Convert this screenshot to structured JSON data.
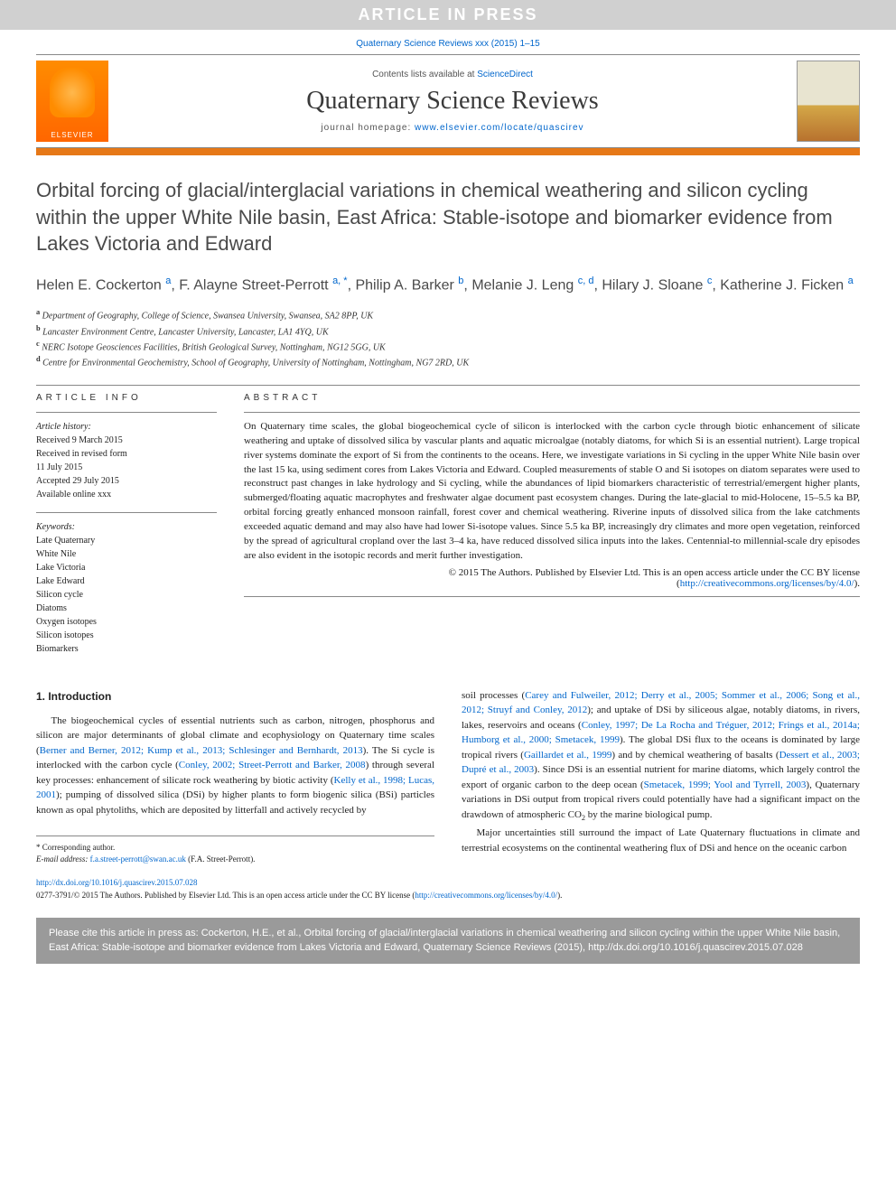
{
  "banner": "ARTICLE IN PRESS",
  "citation_header": "Quaternary Science Reviews xxx (2015) 1–15",
  "masthead": {
    "contents_prefix": "Contents lists available at ",
    "contents_link": "ScienceDirect",
    "journal": "Quaternary Science Reviews",
    "homepage_prefix": "journal homepage: ",
    "homepage_url": "www.elsevier.com/locate/quascirev",
    "publisher": "ELSEVIER",
    "cover_label": "QUATERNARY"
  },
  "title": "Orbital forcing of glacial/interglacial variations in chemical weathering and silicon cycling within the upper White Nile basin, East Africa: Stable-isotope and biomarker evidence from Lakes Victoria and Edward",
  "authors_html": "Helen E. Cockerton <sup>a</sup>, F. Alayne Street-Perrott <sup>a, *</sup>, Philip A. Barker <sup>b</sup>, Melanie J. Leng <sup>c, d</sup>, Hilary J. Sloane <sup>c</sup>, Katherine J. Ficken <sup>a</sup>",
  "affiliations": [
    {
      "sup": "a",
      "text": "Department of Geography, College of Science, Swansea University, Swansea, SA2 8PP, UK"
    },
    {
      "sup": "b",
      "text": "Lancaster Environment Centre, Lancaster University, Lancaster, LA1 4YQ, UK"
    },
    {
      "sup": "c",
      "text": "NERC Isotope Geosciences Facilities, British Geological Survey, Nottingham, NG12 5GG, UK"
    },
    {
      "sup": "d",
      "text": "Centre for Environmental Geochemistry, School of Geography, University of Nottingham, Nottingham, NG7 2RD, UK"
    }
  ],
  "article_info": {
    "header": "ARTICLE INFO",
    "history_title": "Article history:",
    "history": [
      "Received 9 March 2015",
      "Received in revised form",
      "11 July 2015",
      "Accepted 29 July 2015",
      "Available online xxx"
    ],
    "keywords_title": "Keywords:",
    "keywords": [
      "Late Quaternary",
      "White Nile",
      "Lake Victoria",
      "Lake Edward",
      "Silicon cycle",
      "Diatoms",
      "Oxygen isotopes",
      "Silicon isotopes",
      "Biomarkers"
    ]
  },
  "abstract": {
    "header": "ABSTRACT",
    "text": "On Quaternary time scales, the global biogeochemical cycle of silicon is interlocked with the carbon cycle through biotic enhancement of silicate weathering and uptake of dissolved silica by vascular plants and aquatic microalgae (notably diatoms, for which Si is an essential nutrient). Large tropical river systems dominate the export of Si from the continents to the oceans. Here, we investigate variations in Si cycling in the upper White Nile basin over the last 15 ka, using sediment cores from Lakes Victoria and Edward. Coupled measurements of stable O and Si isotopes on diatom separates were used to reconstruct past changes in lake hydrology and Si cycling, while the abundances of lipid biomarkers characteristic of terrestrial/emergent higher plants, submerged/floating aquatic macrophytes and freshwater algae document past ecosystem changes. During the late-glacial to mid-Holocene, 15–5.5 ka BP, orbital forcing greatly enhanced monsoon rainfall, forest cover and chemical weathering. Riverine inputs of dissolved silica from the lake catchments exceeded aquatic demand and may also have had lower Si-isotope values. Since 5.5 ka BP, increasingly dry climates and more open vegetation, reinforced by the spread of agricultural cropland over the last 3–4 ka, have reduced dissolved silica inputs into the lakes. Centennial-to millennial-scale dry episodes are also evident in the isotopic records and merit further investigation.",
    "copyright": "© 2015 The Authors. Published by Elsevier Ltd. This is an open access article under the CC BY license",
    "license_url": "http://creativecommons.org/licenses/by/4.0/"
  },
  "body": {
    "section_title": "1. Introduction",
    "col1_p1_pre": "The biogeochemical cycles of essential nutrients such as carbon, nitrogen, phosphorus and silicon are major determinants of global climate and ecophysiology on Quaternary time scales (",
    "col1_ref1": "Berner and Berner, 2012; Kump et al., 2013; Schlesinger and Bernhardt, 2013",
    "col1_p1_mid1": "). The Si cycle is interlocked with the carbon cycle (",
    "col1_ref2": "Conley, 2002; Street-Perrott and Barker, 2008",
    "col1_p1_mid2": ") through several key processes: enhancement of silicate rock weathering by biotic activity (",
    "col1_ref3": "Kelly et al., 1998; Lucas, 2001",
    "col1_p1_end": "); pumping of dissolved silica (DSi) by higher plants to form biogenic silica (BSi) particles known as opal phytoliths, which are deposited by litterfall and actively recycled by",
    "col2_pre": "soil processes (",
    "col2_ref1": "Carey and Fulweiler, 2012; Derry et al., 2005; Sommer et al., 2006; Song et al., 2012; Struyf and Conley, 2012",
    "col2_mid1": "); and uptake of DSi by siliceous algae, notably diatoms, in rivers, lakes, reservoirs and oceans (",
    "col2_ref2": "Conley, 1997; De La Rocha and Tréguer, 2012; Frings et al., 2014a; Humborg et al., 2000; Smetacek, 1999",
    "col2_mid2": "). The global DSi flux to the oceans is dominated by large tropical rivers (",
    "col2_ref3": "Gaillardet et al., 1999",
    "col2_mid3": ") and by chemical weathering of basalts (",
    "col2_ref4": "Dessert et al., 2003; Dupré et al., 2003",
    "col2_mid4": "). Since DSi is an essential nutrient for marine diatoms, which largely control the export of organic carbon to the deep ocean (",
    "col2_ref5": "Smetacek, 1999; Yool and Tyrrell, 2003",
    "col2_end": "), Quaternary variations in DSi output from tropical rivers could potentially have had a significant impact on the drawdown of atmospheric CO",
    "col2_sub": "2",
    "col2_tail": " by the marine biological pump.",
    "col2_p2": "Major uncertainties still surround the impact of Late Quaternary fluctuations in climate and terrestrial ecosystems on the continental weathering flux of DSi and hence on the oceanic carbon"
  },
  "footnote": {
    "corr": "* Corresponding author.",
    "email_label": "E-mail address: ",
    "email": "f.a.street-perrott@swan.ac.uk",
    "email_name": " (F.A. Street-Perrott)."
  },
  "doi": {
    "url": "http://dx.doi.org/10.1016/j.quascirev.2015.07.028",
    "issn_line": "0277-3791/© 2015 The Authors. Published by Elsevier Ltd. This is an open access article under the CC BY license (",
    "license_url": "http://creativecommons.org/licenses/by/4.0/",
    "close": ")."
  },
  "cite_box": "Please cite this article in press as: Cockerton, H.E., et al., Orbital forcing of glacial/interglacial variations in chemical weathering and silicon cycling within the upper White Nile basin, East Africa: Stable-isotope and biomarker evidence from Lakes Victoria and Edward, Quaternary Science Reviews (2015), http://dx.doi.org/10.1016/j.quascirev.2015.07.028",
  "colors": {
    "link": "#0066cc",
    "accent_bar": "#e67817",
    "banner_bg": "#d0d0d0",
    "cite_bg": "#9a9a9a"
  }
}
